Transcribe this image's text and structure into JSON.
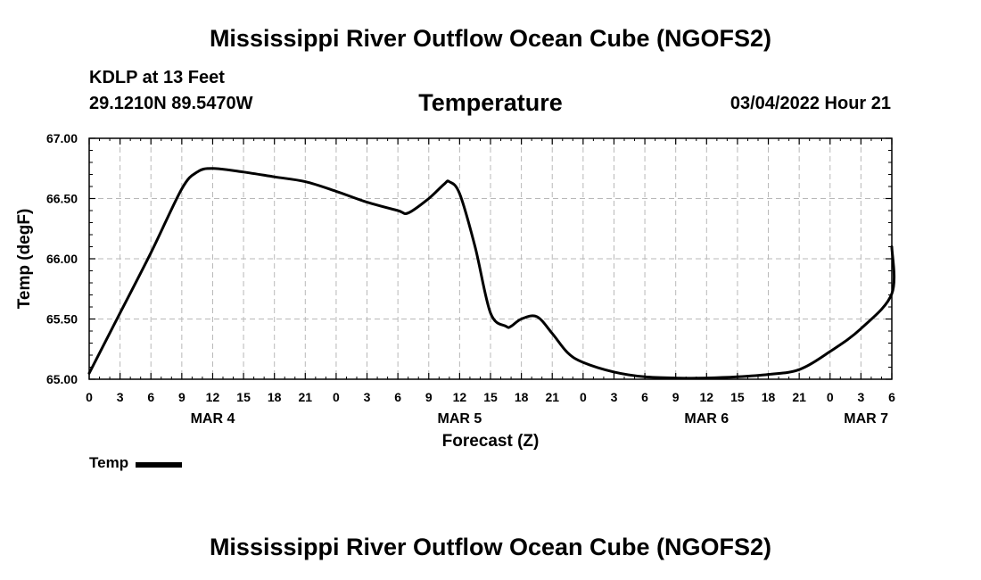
{
  "header": {
    "title": "Mississippi River Outflow Ocean Cube (NGOFS2)",
    "station": "KDLP at 13 Feet",
    "coords": "29.1210N  89.5470W",
    "subtitle": "Temperature",
    "datetime": "03/04/2022 Hour 21"
  },
  "footer": {
    "title": "Mississippi River Outflow Ocean Cube (NGOFS2)"
  },
  "legend": {
    "label": "Temp"
  },
  "chart_data": {
    "type": "line",
    "title": "Temperature",
    "xlabel": "Forecast (Z)",
    "ylabel": "Temp (degF)",
    "xlim": [
      0,
      78
    ],
    "ylim": [
      65.0,
      67.0
    ],
    "grid": true,
    "legend_position": "bottom-left",
    "y_ticks": [
      65.0,
      65.5,
      66.0,
      66.5,
      67.0
    ],
    "y_tick_labels": [
      "65.00",
      "65.50",
      "66.00",
      "66.50",
      "67.00"
    ],
    "x_ticks": [
      0,
      3,
      6,
      9,
      12,
      15,
      18,
      21,
      24,
      27,
      30,
      33,
      36,
      39,
      42,
      45,
      48,
      51,
      54,
      57,
      60,
      63,
      66,
      69,
      72,
      75,
      78
    ],
    "x_tick_labels": [
      "0",
      "3",
      "6",
      "9",
      "12",
      "15",
      "18",
      "21",
      "0",
      "3",
      "6",
      "9",
      "12",
      "15",
      "18",
      "21",
      "0",
      "3",
      "6",
      "9",
      "12",
      "15",
      "18",
      "21",
      "0",
      "3",
      "6"
    ],
    "date_labels": [
      {
        "text": "MAR 4",
        "x": 12
      },
      {
        "text": "MAR 5",
        "x": 36
      },
      {
        "text": "MAR 6",
        "x": 60
      },
      {
        "text": "MAR 7",
        "x": 75.5
      }
    ],
    "series": [
      {
        "name": "Temp",
        "color": "#000000",
        "x": [
          0,
          3,
          6,
          9,
          10.5,
          12,
          15,
          18,
          21,
          24,
          27,
          30,
          31,
          33,
          34.5,
          35,
          36,
          37.5,
          39,
          40.5,
          41,
          42,
          43.5,
          45,
          46.5,
          48,
          51,
          54,
          57,
          60,
          63,
          66,
          69,
          72,
          75,
          78
        ],
        "values": [
          65.05,
          65.55,
          66.05,
          66.58,
          66.72,
          66.75,
          66.72,
          66.68,
          66.64,
          66.56,
          66.47,
          66.4,
          66.38,
          66.5,
          66.62,
          66.64,
          66.54,
          66.1,
          65.55,
          65.44,
          65.44,
          65.5,
          65.52,
          65.38,
          65.22,
          65.14,
          65.06,
          65.02,
          65.01,
          65.01,
          65.02,
          65.04,
          65.08,
          65.23,
          65.42,
          65.71
        ]
      }
    ],
    "series_extra": {
      "x": [
        78
      ],
      "values": [
        66.1
      ]
    }
  }
}
